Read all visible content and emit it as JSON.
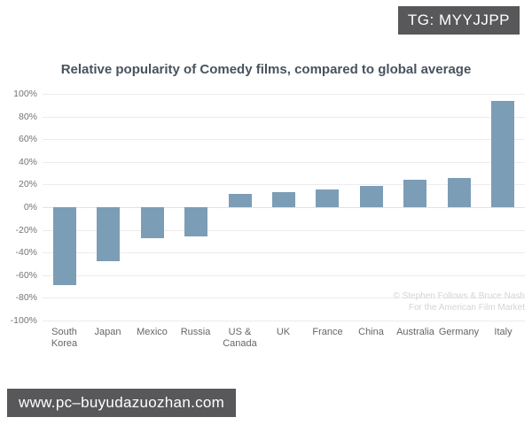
{
  "overlays": {
    "tg_badge": "TG: MYYJJPP",
    "watermark": "www.pc–buyudazuozhan.com"
  },
  "chart_data": {
    "type": "bar",
    "title": "Relative popularity of Comedy films, compared to global average",
    "categories": [
      "South Korea",
      "Japan",
      "Mexico",
      "Russia",
      "US & Canada",
      "UK",
      "France",
      "China",
      "Australia",
      "Germany",
      "Italy"
    ],
    "values": [
      -69,
      -48,
      -27,
      -26,
      12,
      13,
      16,
      19,
      24,
      26,
      94
    ],
    "xlabel": "",
    "ylabel": "",
    "ylim": [
      -100,
      100
    ],
    "ytick_step": 20,
    "ytick_suffix": "%",
    "grid": true,
    "legend": "none",
    "bar_color": "#7C9DB6",
    "attribution": [
      "© Stephen Follows & Bruce Nash",
      "For the American Film Market"
    ]
  }
}
